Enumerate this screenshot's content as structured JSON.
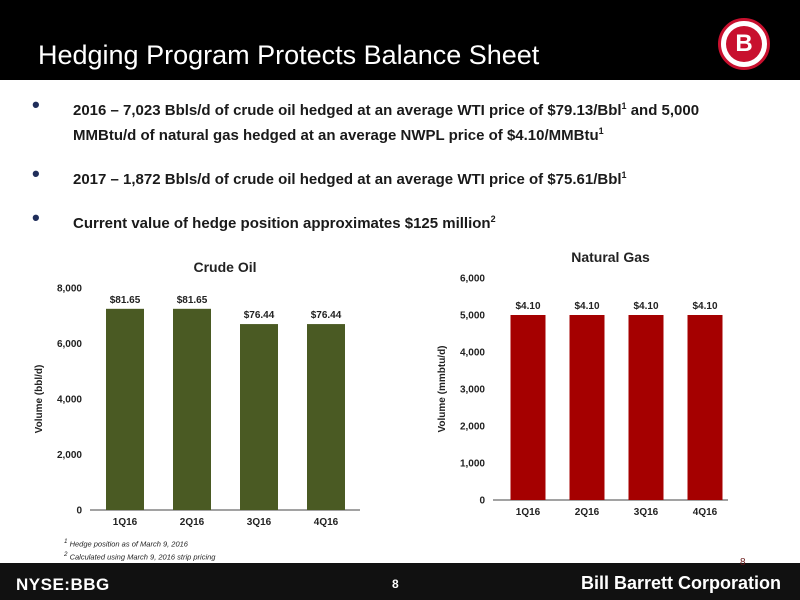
{
  "header": {
    "title": "Hedging Program Protects Balance Sheet",
    "logo_letter": "B"
  },
  "bullets": [
    {
      "text": "2016 – 7,023 Bbls/d of crude oil hedged at an average WTI price of $79.13/Bbl",
      "sup1": "1",
      "text2": " and 5,000 MMBtu/d of natural gas hedged at an average NWPL price of $4.10/MMBtu",
      "sup2": "1"
    },
    {
      "text": "2017 – 1,872 Bbls/d of crude oil hedged at an average WTI price of $75.61/Bbl",
      "sup1": "1"
    },
    {
      "text": "Current value of hedge position approximates $125 million",
      "sup1": "2"
    }
  ],
  "chart_data": [
    {
      "type": "bar",
      "title": "Crude Oil",
      "xlabel": "",
      "ylabel": "Volume (bbl/d)",
      "categories": [
        "1Q16",
        "2Q16",
        "3Q16",
        "4Q16"
      ],
      "values": [
        7250,
        7250,
        6700,
        6700
      ],
      "data_labels": [
        "$81.65",
        "$81.65",
        "$76.44",
        "$76.44"
      ],
      "ylim": [
        0,
        8000
      ],
      "yticks": [
        0,
        2000,
        4000,
        6000,
        8000
      ],
      "ytick_labels": [
        "0",
        "2,000",
        "4,000",
        "6,000",
        "8,000"
      ],
      "color": "#4a5a23",
      "grid": false
    },
    {
      "type": "bar",
      "title": "Natural Gas",
      "xlabel": "",
      "ylabel": "Volume (mmbtu/d)",
      "categories": [
        "1Q16",
        "2Q16",
        "3Q16",
        "4Q16"
      ],
      "values": [
        5000,
        5000,
        5000,
        5000
      ],
      "data_labels": [
        "$4.10",
        "$4.10",
        "$4.10",
        "$4.10"
      ],
      "ylim": [
        0,
        6000
      ],
      "yticks": [
        0,
        1000,
        2000,
        3000,
        4000,
        5000,
        6000
      ],
      "ytick_labels": [
        "0",
        "1,000",
        "2,000",
        "3,000",
        "4,000",
        "5,000",
        "6,000"
      ],
      "color": "#a50000",
      "grid": false
    }
  ],
  "footnotes": {
    "note1_mark": "1",
    "note1": " Hedge position as of March 9, 2016",
    "note2_mark": "2",
    "note2": " Calculated using March 9, 2016 strip pricing"
  },
  "footer": {
    "ticker": "NYSE:BBG",
    "page": "8",
    "page_ghost": "8",
    "company": "Bill Barrett Corporation"
  }
}
